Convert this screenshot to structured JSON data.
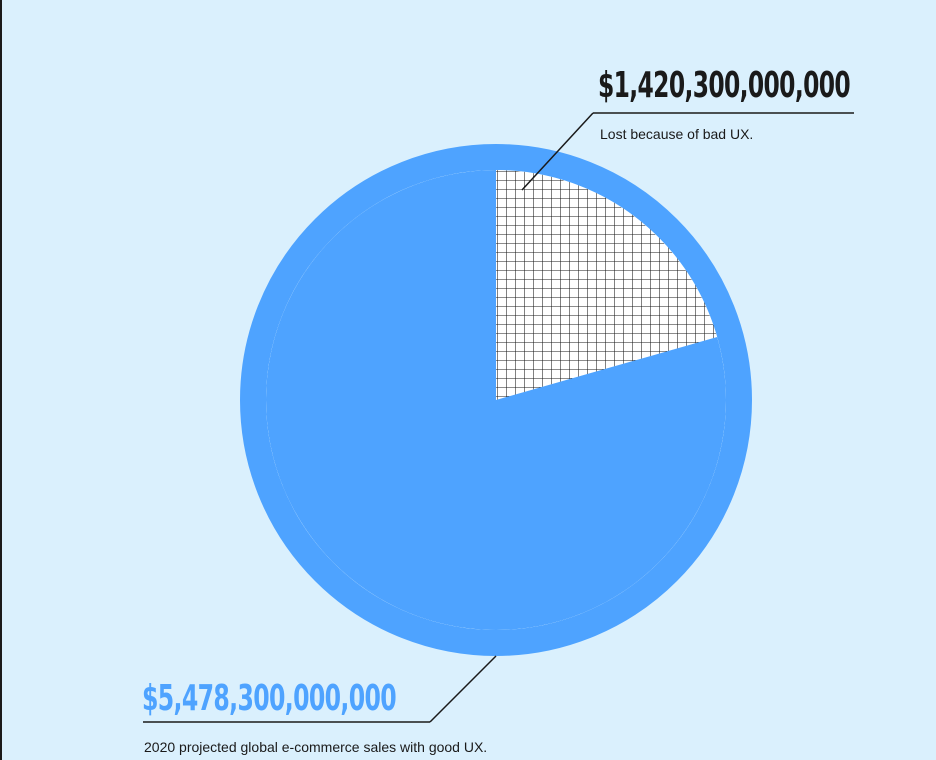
{
  "chart_data": {
    "type": "pie",
    "slices": [
      {
        "label": "Lost because of bad UX.",
        "value_text": "$1,420,300,000,000",
        "value": 1420300000000,
        "color": "#ffffff",
        "pattern": "grid",
        "grid_color": "#1a1a1a"
      },
      {
        "label": "2020 projected global e-commerce sales with good UX.",
        "value_text": "$5,478,300,000,000",
        "value": 5478300000000,
        "color": "#4ea3ff"
      }
    ],
    "ring_color": "#4ea3ff",
    "background": "#daf0fd",
    "label_colors": {
      "lost": "#1a1a1a",
      "sales": "#4ea3ff"
    }
  }
}
